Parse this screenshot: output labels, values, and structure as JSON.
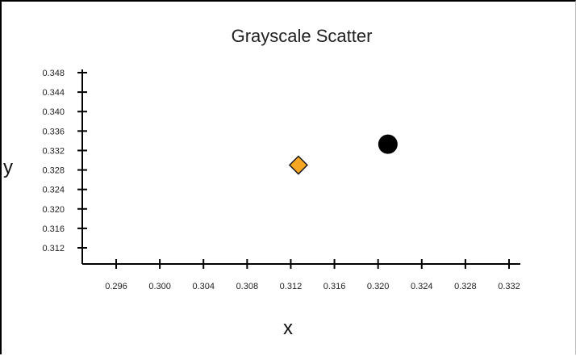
{
  "chart_data": {
    "type": "scatter",
    "title": "Grayscale Scatter",
    "xlabel": "x",
    "ylabel": "y",
    "xlim": [
      0.2925,
      0.3325
    ],
    "ylim": [
      0.3095,
      0.35
    ],
    "x_ticks": [
      "0.296",
      "0.300",
      "0.304",
      "0.308",
      "0.312",
      "0.316",
      "0.320",
      "0.324",
      "0.328",
      "0.332"
    ],
    "y_ticks": [
      "0.348",
      "0.344",
      "0.340",
      "0.336",
      "0.332",
      "0.328",
      "0.324",
      "0.320",
      "0.316",
      "0.312"
    ],
    "grid": false,
    "points": [
      {
        "x": 0.3127,
        "y": 0.329,
        "marker": "diamond",
        "color": "#f5a623"
      },
      {
        "x": 0.3209,
        "y": 0.3333,
        "marker": "circle",
        "color": "#000000"
      }
    ]
  }
}
